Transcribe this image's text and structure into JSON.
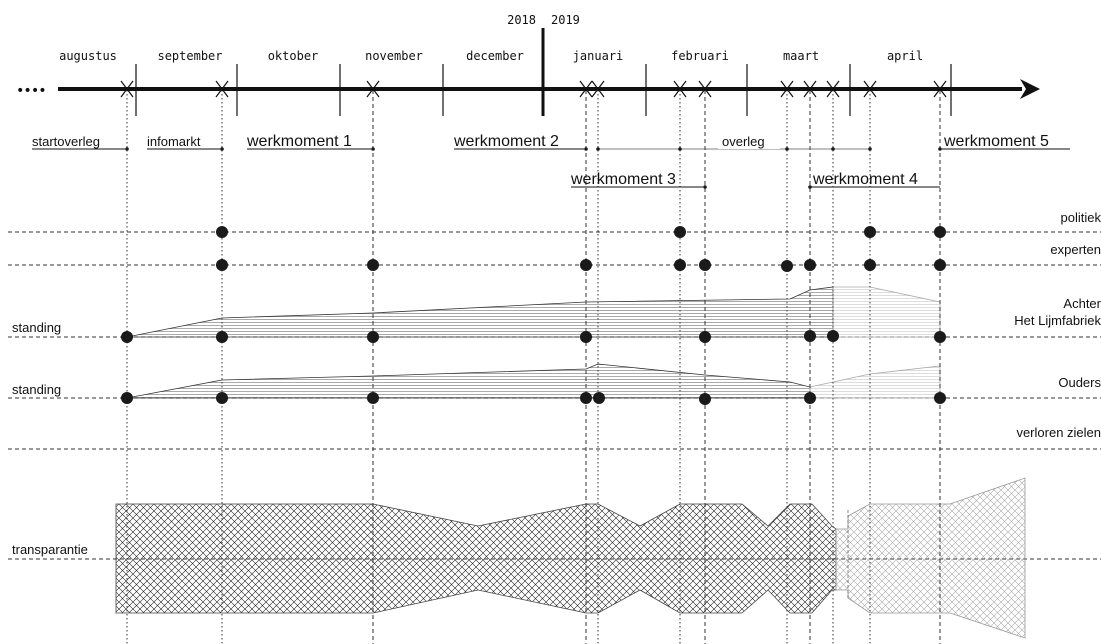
{
  "timeline": {
    "months": [
      "augustus",
      "september",
      "oktober",
      "november",
      "december",
      "januari",
      "februari",
      "maart",
      "april"
    ],
    "year_left": "2018",
    "year_right": "2019",
    "lead_dots": "••••"
  },
  "events": {
    "startoverleg": "startoverleg",
    "infomarkt": "infomarkt",
    "werkmoment_1": "werkmoment 1",
    "werkmoment_2": "werkmoment 2",
    "werkmoment_3": "werkmoment 3",
    "overleg": "overleg",
    "werkmoment_4": "werkmoment 4",
    "werkmoment_5": "werkmoment 5"
  },
  "rows": {
    "politiek": "politiek",
    "experten": "experten",
    "achter_line1": "Achter",
    "achter_line2": "Het Lijmfabriek",
    "ouders": "Ouders",
    "verloren_zielen": "verloren zielen",
    "left_standing_1": "standing",
    "left_standing_2": "standing",
    "left_transparantie": "transparantie"
  },
  "icons": {
    "cross_marker": "x-marker-icon",
    "dot_marker": "dot-icon",
    "arrow": "arrow-right-icon"
  }
}
